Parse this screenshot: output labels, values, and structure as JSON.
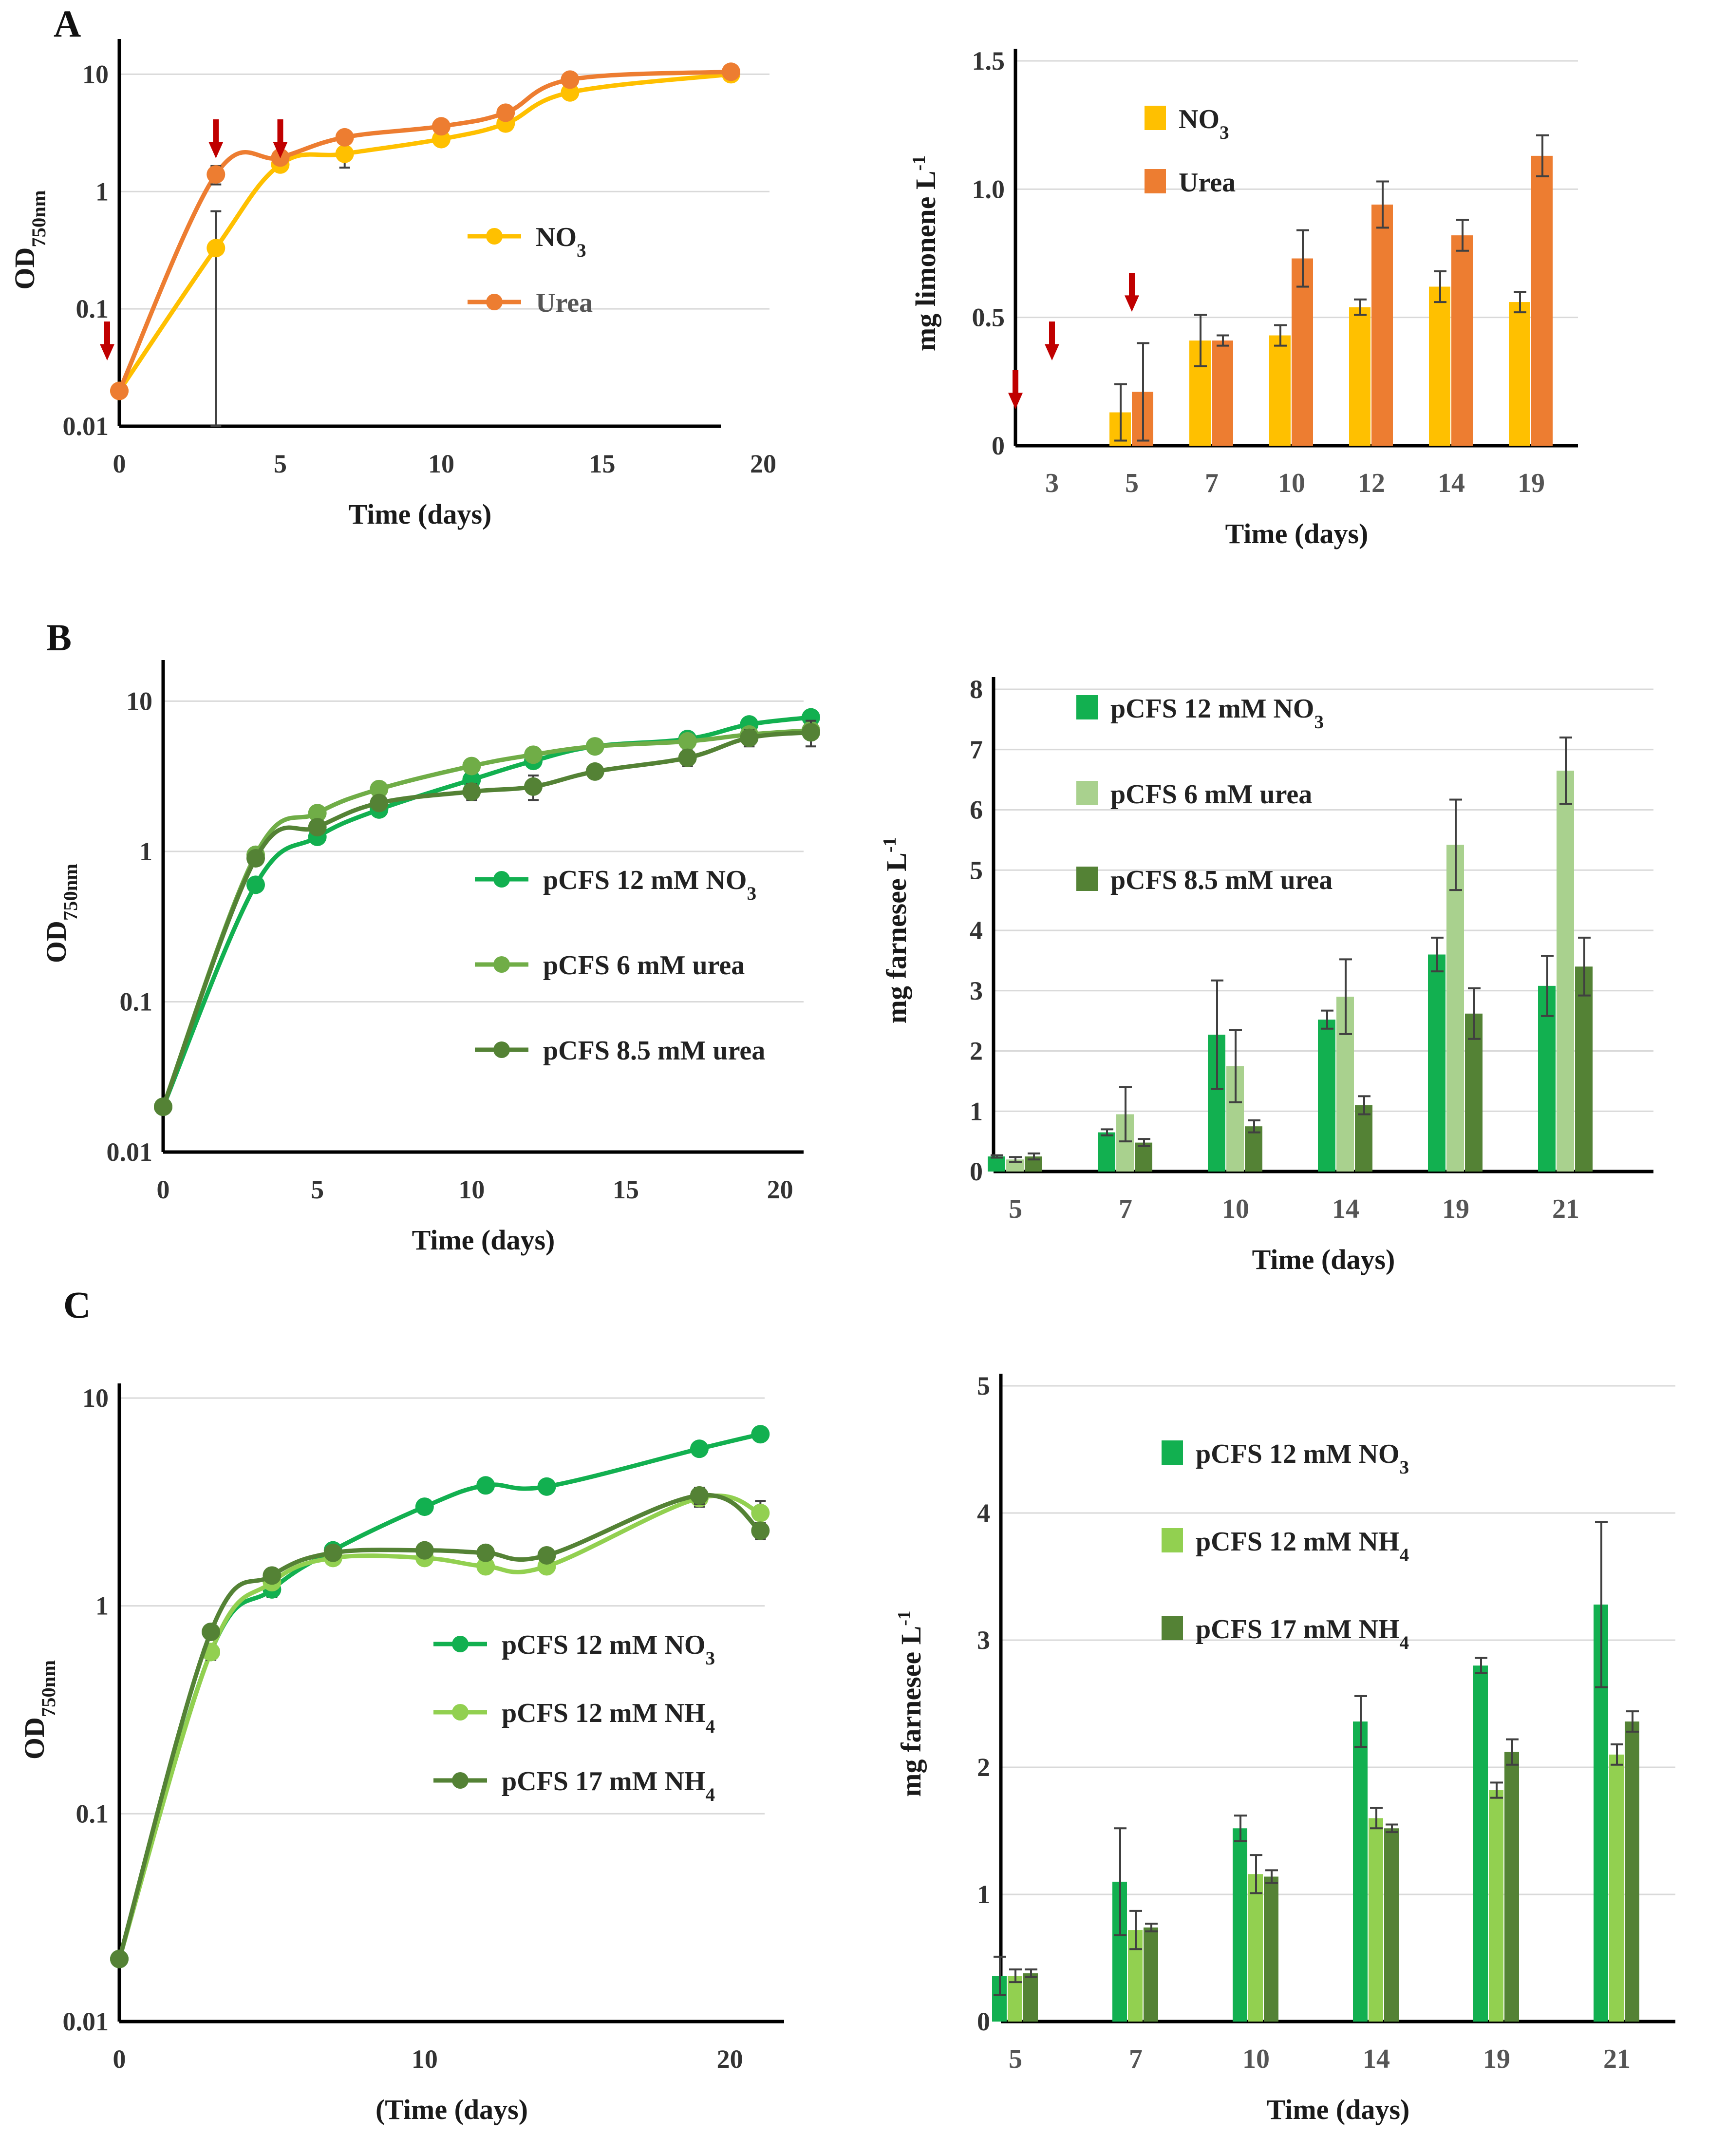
{
  "colors": {
    "no3_yellow": "#FFC000",
    "urea_orange": "#ED7D31",
    "arrow_red": "#C00000",
    "green_no3": "#12B050",
    "green_light": "#A9D18E",
    "green_mid": "#70AD47",
    "green_dark": "#548235",
    "green_c_nh4_12": "#92D050",
    "grid": "#d9d9d9",
    "errorbar": "#404040"
  },
  "chart_data": [
    {
      "id": "A-growth",
      "panel_label": "A",
      "type": "line",
      "yscale": "log",
      "xlabel": "Time (days)",
      "ylabel": "OD",
      "ylabel_sub": "750nm",
      "xlim": [
        0,
        20
      ],
      "ylim": [
        0.01,
        15
      ],
      "xticks": [
        "0",
        "5",
        "10",
        "15",
        "20"
      ],
      "yticks": [
        "0.01",
        "0.1",
        "1",
        "10"
      ],
      "series": [
        {
          "name": "NO3",
          "label": "NO",
          "label_sub": "3",
          "color": "#FFC000",
          "x": [
            0,
            3,
            5,
            7,
            10,
            12,
            14,
            19
          ],
          "y": [
            0.02,
            0.33,
            1.7,
            2.1,
            2.8,
            3.8,
            7.0,
            10.0
          ],
          "err": [
            0,
            0.35,
            0.15,
            0.5,
            0.2,
            0.3,
            0.6,
            0.3
          ]
        },
        {
          "name": "Urea",
          "label": "Urea",
          "color": "#ED7D31",
          "x": [
            0,
            3,
            5,
            7,
            10,
            12,
            14,
            19
          ],
          "y": [
            0.02,
            1.4,
            1.95,
            2.9,
            3.6,
            4.7,
            9.0,
            10.5
          ],
          "err": [
            0,
            0.25,
            0.1,
            0.3,
            0.3,
            0.4,
            0.4,
            0.5
          ]
        }
      ],
      "arrows_x": [
        0,
        3,
        5
      ]
    },
    {
      "id": "A-limonene",
      "type": "bar",
      "xlabel": "Time (days)",
      "ylabel": "mg  limonene L",
      "ylabel_sup": "-1",
      "ylim": [
        0,
        1.5
      ],
      "yticks": [
        "0",
        "0.5",
        "1.0",
        "1.5"
      ],
      "categories": [
        "3",
        "5",
        "7",
        "10",
        "12",
        "14",
        "19"
      ],
      "series": [
        {
          "name": "NO3",
          "label": "NO",
          "label_sub": "3",
          "color": "#FFC000",
          "values": [
            0,
            0.13,
            0.41,
            0.43,
            0.54,
            0.62,
            0.56
          ],
          "err": [
            0,
            0.11,
            0.1,
            0.04,
            0.03,
            0.06,
            0.04
          ]
        },
        {
          "name": "Urea",
          "label": "Urea",
          "color": "#ED7D31",
          "values": [
            0,
            0.21,
            0.41,
            0.73,
            0.94,
            0.82,
            1.13
          ],
          "err": [
            0,
            0.19,
            0.02,
            0.11,
            0.09,
            0.06,
            0.08
          ]
        }
      ],
      "arrows_category": [
        "3",
        "3",
        "5"
      ]
    },
    {
      "id": "B-growth",
      "panel_label": "B",
      "type": "line",
      "yscale": "log",
      "xlabel": "Time (days)",
      "ylabel": "OD",
      "ylabel_sub": "750nm",
      "xlim": [
        0,
        21
      ],
      "ylim": [
        0.01,
        15
      ],
      "xticks": [
        "0",
        "5",
        "10",
        "15",
        "20"
      ],
      "yticks": [
        "0.01",
        "0.1",
        "1",
        "10"
      ],
      "series": [
        {
          "name": "pCFS 12 mM NO3",
          "label": "pCFS 12 mM NO",
          "label_sub": "3",
          "color": "#12B050",
          "x": [
            0,
            3,
            5,
            7,
            10,
            12,
            14,
            17,
            19,
            21
          ],
          "y": [
            0.02,
            0.6,
            1.25,
            1.9,
            3.0,
            4.0,
            5.0,
            5.6,
            7.0,
            7.8
          ],
          "err": [
            0,
            0.05,
            0.1,
            0.15,
            0.3,
            0.3,
            0.3,
            0.4,
            0.4,
            0.5
          ]
        },
        {
          "name": "pCFS 6 mM urea",
          "label": "pCFS 6 mM urea",
          "color": "#70AD47",
          "x": [
            0,
            3,
            5,
            7,
            10,
            12,
            14,
            17,
            19,
            21
          ],
          "y": [
            0.02,
            0.95,
            1.8,
            2.6,
            3.7,
            4.4,
            5.0,
            5.4,
            6.0,
            6.4
          ],
          "err": [
            0,
            0.05,
            0.1,
            0.2,
            0.3,
            0.3,
            0.3,
            0.3,
            0.4,
            0.4
          ]
        },
        {
          "name": "pCFS 8.5 mM urea",
          "label": "pCFS 8.5 mM urea",
          "color": "#548235",
          "x": [
            0,
            3,
            5,
            7,
            10,
            12,
            14,
            17,
            19,
            21
          ],
          "y": [
            0.02,
            0.9,
            1.45,
            2.1,
            2.5,
            2.7,
            3.4,
            4.2,
            5.7,
            6.2
          ],
          "err": [
            0,
            0.05,
            0.1,
            0.2,
            0.3,
            0.5,
            0.3,
            0.5,
            0.7,
            1.2
          ]
        }
      ]
    },
    {
      "id": "B-farnesene",
      "type": "bar",
      "xlabel": "Time (days)",
      "ylabel": "mg  farnesee L",
      "ylabel_sup": "-1",
      "ylim": [
        0,
        8
      ],
      "yticks": [
        "0",
        "1",
        "2",
        "3",
        "4",
        "5",
        "6",
        "7",
        "8"
      ],
      "categories": [
        "5",
        "7",
        "10",
        "14",
        "19",
        "21"
      ],
      "series": [
        {
          "name": "pCFS 12 mM NO3",
          "label": "pCFS 12 mM NO",
          "label_sub": "3",
          "color": "#12B050",
          "values": [
            0.25,
            0.65,
            2.27,
            2.52,
            3.6,
            3.08
          ],
          "err": [
            0.02,
            0.05,
            0.9,
            0.15,
            0.28,
            0.5
          ]
        },
        {
          "name": "pCFS 6 mM urea",
          "label": "pCFS 6 mM urea",
          "color": "#A9D18E",
          "values": [
            0.2,
            0.95,
            1.75,
            2.9,
            5.42,
            6.65
          ],
          "err": [
            0.04,
            0.45,
            0.6,
            0.62,
            0.75,
            0.55
          ]
        },
        {
          "name": "pCFS 8.5 mM urea",
          "label": "pCFS 8.5 mM urea",
          "color": "#548235",
          "values": [
            0.25,
            0.48,
            0.75,
            1.1,
            2.62,
            3.4
          ],
          "err": [
            0.05,
            0.06,
            0.1,
            0.15,
            0.42,
            0.48
          ]
        }
      ]
    },
    {
      "id": "C-growth",
      "panel_label": "C",
      "type": "line",
      "yscale": "log",
      "xlabel": "(Time (days)",
      "ylabel": "OD",
      "ylabel_sub": "750nm",
      "xlim": [
        0,
        22
      ],
      "ylim": [
        0.01,
        10
      ],
      "xticks": [
        "0",
        "10",
        "20"
      ],
      "yticks": [
        "0.01",
        "0.1",
        "1",
        "10"
      ],
      "series": [
        {
          "name": "pCFS 12 mM NO3",
          "label": "pCFS 12 mM NO",
          "label_sub": "3",
          "color": "#12B050",
          "x": [
            0,
            3,
            5,
            7,
            10,
            12,
            14,
            19,
            21
          ],
          "y": [
            0.02,
            0.6,
            1.2,
            1.85,
            3.0,
            3.8,
            3.75,
            5.7,
            6.7
          ],
          "err": [
            0,
            0.05,
            0.1,
            0.1,
            0.2,
            0.2,
            0.2,
            0.3,
            0.3
          ]
        },
        {
          "name": "pCFS 12 mM NH4",
          "label": "pCFS 12 mM NH",
          "label_sub": "4",
          "color": "#92D050",
          "x": [
            0,
            3,
            5,
            7,
            10,
            12,
            14,
            19,
            21
          ],
          "y": [
            0.02,
            0.6,
            1.3,
            1.7,
            1.7,
            1.55,
            1.55,
            3.3,
            2.8
          ],
          "err": [
            0,
            0.05,
            0.1,
            0.1,
            0.1,
            0.1,
            0.1,
            0.3,
            0.4
          ]
        },
        {
          "name": "pCFS 17 mM NH4",
          "label": "pCFS 17 mM NH",
          "label_sub": "4",
          "color": "#548235",
          "x": [
            0,
            3,
            5,
            7,
            10,
            12,
            14,
            19,
            21
          ],
          "y": [
            0.02,
            0.75,
            1.4,
            1.8,
            1.85,
            1.8,
            1.75,
            3.4,
            2.3
          ],
          "err": [
            0,
            0.05,
            0.1,
            0.1,
            0.1,
            0.1,
            0.1,
            0.3,
            0.2
          ]
        }
      ]
    },
    {
      "id": "C-farnesene",
      "type": "bar",
      "xlabel": "Time (days)",
      "ylabel": "mg  farnesee L",
      "ylabel_sup": "-1",
      "ylim": [
        0,
        5
      ],
      "yticks": [
        "0",
        "1",
        "2",
        "3",
        "4",
        "5"
      ],
      "categories": [
        "5",
        "7",
        "10",
        "14",
        "19",
        "21"
      ],
      "series": [
        {
          "name": "pCFS 12 mM NO3",
          "label": "pCFS 12 mM NO",
          "label_sub": "3",
          "color": "#12B050",
          "values": [
            0.36,
            1.1,
            1.52,
            2.36,
            2.8,
            3.28
          ],
          "err": [
            0.15,
            0.42,
            0.1,
            0.2,
            0.06,
            0.65
          ]
        },
        {
          "name": "pCFS 12 mM NH4",
          "label": "pCFS 12 mM NH",
          "label_sub": "4",
          "color": "#92D050",
          "values": [
            0.36,
            0.72,
            1.16,
            1.6,
            1.82,
            2.1
          ],
          "err": [
            0.05,
            0.15,
            0.15,
            0.08,
            0.06,
            0.08
          ]
        },
        {
          "name": "pCFS 17 mM NH4",
          "label": "pCFS 17 mM NH",
          "label_sub": "4",
          "color": "#548235",
          "values": [
            0.38,
            0.74,
            1.14,
            1.52,
            2.12,
            2.36
          ],
          "err": [
            0.03,
            0.03,
            0.05,
            0.03,
            0.1,
            0.08
          ]
        }
      ]
    }
  ]
}
